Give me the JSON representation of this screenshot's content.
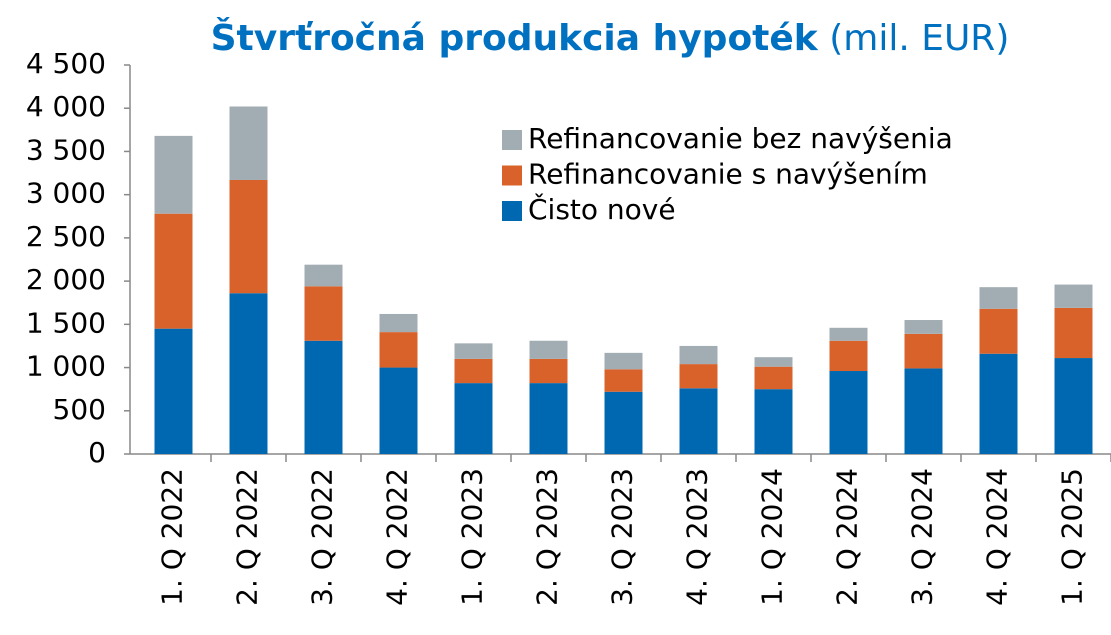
{
  "chart_data": {
    "type": "stacked_bar",
    "title": "Štvrťročná produkcia hypoték",
    "title_unit": "(mil. EUR)",
    "categories": [
      "1. Q 2022",
      "2. Q 2022",
      "3. Q 2022",
      "4. Q 2022",
      "1. Q 2023",
      "2. Q 2023",
      "3. Q 2023",
      "4. Q 2023",
      "1. Q 2024",
      "2. Q 2024",
      "3. Q 2024",
      "4. Q 2024",
      "1. Q 2025"
    ],
    "series": [
      {
        "name": "Čisto nové",
        "color": "#0068b0",
        "values": [
          1450,
          1860,
          1310,
          1000,
          820,
          820,
          720,
          760,
          750,
          960,
          990,
          1160,
          1110
        ]
      },
      {
        "name": "Refinancovanie s navýšením",
        "color": "#d9622b",
        "values": [
          1330,
          1310,
          630,
          410,
          280,
          280,
          260,
          280,
          260,
          350,
          400,
          520,
          580
        ]
      },
      {
        "name": "Refinancovanie bez navýšenia",
        "color": "#a2adb3",
        "values": [
          900,
          850,
          250,
          210,
          180,
          210,
          190,
          210,
          110,
          150,
          160,
          250,
          270
        ]
      }
    ],
    "ylim": [
      0,
      4500
    ],
    "yticks": [
      0,
      500,
      {
        "value": 1000,
        "label": "1 000"
      },
      {
        "value": 1500,
        "label": "1 500"
      },
      {
        "value": 2000,
        "label": "2 000"
      },
      {
        "value": 2500,
        "label": "2 500"
      },
      {
        "value": 3000,
        "label": "3 000"
      },
      {
        "value": 3500,
        "label": "3 500"
      },
      {
        "value": 4000,
        "label": "4 000"
      },
      {
        "value": 4500,
        "label": "4 500"
      }
    ],
    "legend": "top-right"
  }
}
